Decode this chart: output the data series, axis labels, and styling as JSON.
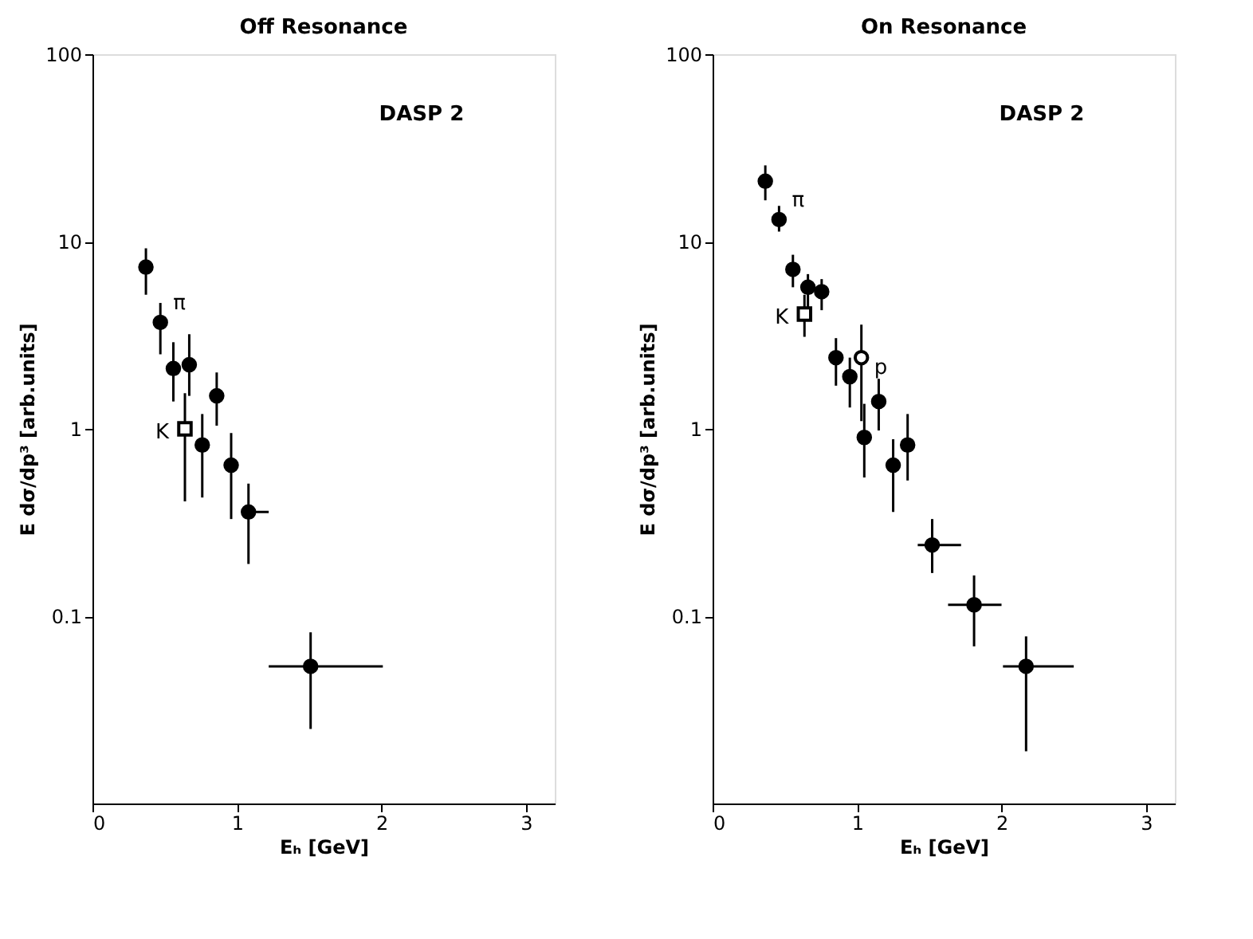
{
  "chart_data": [
    {
      "type": "scatter",
      "title": "Off Resonance",
      "xlabel": "Eₕ [GeV]",
      "ylabel": "E dσ/dp³ [arb.units]",
      "log": "y",
      "xlim": [
        0,
        3.2
      ],
      "xticks": [
        0,
        1,
        2,
        3
      ],
      "ylim": [
        0.01,
        100
      ],
      "yticks": [
        100,
        10,
        1,
        0.1
      ],
      "grid": false,
      "annotations": [
        "DASP 2",
        "π",
        "K"
      ],
      "series": [
        {
          "color": "#000000",
          "marker": "circle",
          "x": [
            0.37,
            0.47,
            0.56,
            0.67,
            0.86,
            0.76,
            0.96,
            1.08,
            1.51
          ],
          "values": [
            7.3,
            3.7,
            2.1,
            2.2,
            1.5,
            0.82,
            0.64,
            0.36,
            0.054
          ],
          "errors": [
            [
              5.2,
              9.2
            ],
            [
              2.5,
              4.7
            ],
            [
              1.4,
              2.9
            ],
            [
              1.5,
              3.2
            ],
            [
              1.04,
              2.0
            ],
            [
              0.43,
              1.2
            ],
            [
              0.33,
              0.95
            ],
            [
              0.19,
              0.51
            ],
            [
              0.025,
              0.082
            ]
          ],
          "xerrors": [
            null,
            null,
            null,
            null,
            null,
            null,
            null,
            [
              1.08,
              1.22
            ],
            [
              1.22,
              2.01
            ]
          ]
        },
        {
          "color": "#000000",
          "marker": "square",
          "x": [
            0.64
          ],
          "values": [
            1.0
          ],
          "errors": [
            [
              0.41,
              1.55
            ]
          ]
        }
      ]
    },
    {
      "type": "scatter",
      "title": "On Resonance",
      "xlabel": "Eₕ [GeV]",
      "ylabel": "E dσ/dp³ [arb.units]",
      "log": "y",
      "xlim": [
        0,
        3.2
      ],
      "xticks": [
        0,
        1,
        2,
        3
      ],
      "ylim": [
        0.01,
        100
      ],
      "yticks": [
        100,
        10,
        1,
        0.1
      ],
      "grid": false,
      "annotations": [
        "DASP 2",
        "π",
        "K",
        "p"
      ],
      "series": [
        {
          "color": "#000000",
          "marker": "circle",
          "x": [
            0.365,
            0.46,
            0.556,
            0.66,
            0.755,
            0.854,
            0.95,
            1.05,
            1.15,
            1.25,
            1.35,
            1.52,
            1.81,
            2.17
          ],
          "values": [
            21,
            13.1,
            7.1,
            5.7,
            5.4,
            2.4,
            1.9,
            0.9,
            1.4,
            0.64,
            0.82,
            0.24,
            0.115,
            0.054
          ],
          "errors": [
            [
              16.6,
              25.5
            ],
            [
              11.3,
              15.5
            ],
            [
              5.7,
              8.5
            ],
            [
              4.1,
              6.7
            ],
            [
              4.3,
              6.3
            ],
            [
              1.7,
              3.05
            ],
            [
              1.3,
              2.4
            ],
            [
              0.55,
              1.36
            ],
            [
              0.98,
              1.85
            ],
            [
              0.36,
              0.88
            ],
            [
              0.53,
              1.2
            ],
            [
              0.17,
              0.33
            ],
            [
              0.069,
              0.165
            ],
            [
              0.019,
              0.078
            ]
          ],
          "xerrors": [
            null,
            null,
            null,
            null,
            null,
            null,
            null,
            null,
            null,
            null,
            null,
            [
              1.42,
              1.72
            ],
            [
              1.63,
              2.0
            ],
            [
              2.01,
              2.5
            ]
          ]
        },
        {
          "color": "#000000",
          "marker": "square",
          "x": [
            0.636
          ],
          "values": [
            4.1
          ],
          "errors": [
            [
              3.1,
              5.2
            ]
          ]
        },
        {
          "color": "#000000",
          "marker": "circle",
          "x": [
            1.03
          ],
          "values": [
            2.4
          ],
          "errors": [
            [
              1.1,
              3.6
            ]
          ]
        }
      ]
    }
  ]
}
